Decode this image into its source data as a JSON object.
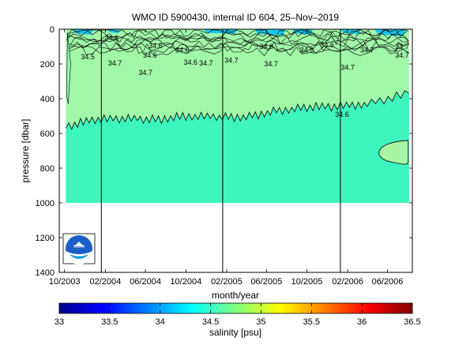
{
  "chart_data": {
    "type": "heatmap",
    "title": "WMO ID 5900430, internal ID 604, 25–Nov–2019",
    "xlabel": "month/year",
    "ylabel": "pressure [dbar]",
    "xlim": [
      "2003-09-15",
      "2006-08-15"
    ],
    "ylim": [
      1400,
      0
    ],
    "x_ticks": [
      "10/2003",
      "02/2004",
      "06/2004",
      "10/2004",
      "02/2005",
      "06/2005",
      "10/2005",
      "02/2006",
      "06/2006"
    ],
    "y_ticks": [
      0,
      200,
      400,
      600,
      800,
      1000,
      1200,
      1400
    ],
    "grid": false,
    "profile_range": [
      "2003-10-05",
      "2006-08-05"
    ],
    "profile_max_pressure": 1000,
    "vertical_lines": [
      "2004-01-20",
      "2005-01-20",
      "2006-01-10"
    ],
    "contour_34_6_depths": [
      [
        "2003-10-05",
        560
      ],
      [
        "2004-01-01",
        520
      ],
      [
        "2004-04-01",
        515
      ],
      [
        "2004-07-01",
        520
      ],
      [
        "2004-10-01",
        500
      ],
      [
        "2005-01-01",
        505
      ],
      [
        "2005-04-01",
        505
      ],
      [
        "2005-07-01",
        470
      ],
      [
        "2005-10-01",
        450
      ],
      [
        "2006-01-01",
        445
      ],
      [
        "2006-04-01",
        430
      ],
      [
        "2006-08-05",
        370
      ]
    ],
    "contour_labels": [
      {
        "text": "34.6",
        "date": "2004-02-20",
        "pressure": 50
      },
      {
        "text": "34.5",
        "date": "2003-12-10",
        "pressure": 160
      },
      {
        "text": "34.7",
        "date": "2004-03-01",
        "pressure": 195
      },
      {
        "text": "34.6",
        "date": "2004-07-01",
        "pressure": 95
      },
      {
        "text": "34.6",
        "date": "2004-06-15",
        "pressure": 150
      },
      {
        "text": "34.6",
        "date": "2004-09-20",
        "pressure": 120
      },
      {
        "text": "34.7",
        "date": "2004-06-01",
        "pressure": 250
      },
      {
        "text": "34.6",
        "date": "2004-10-15",
        "pressure": 190
      },
      {
        "text": "34.7",
        "date": "2004-12-01",
        "pressure": 195
      },
      {
        "text": "34.7",
        "date": "2005-02-15",
        "pressure": 180
      },
      {
        "text": "34.6",
        "date": "2005-06-01",
        "pressure": 100
      },
      {
        "text": "34.7",
        "date": "2005-06-15",
        "pressure": 200
      },
      {
        "text": "34.6",
        "date": "2005-10-01",
        "pressure": 120
      },
      {
        "text": "34.6",
        "date": "2005-12-01",
        "pressure": 90
      },
      {
        "text": "34.7",
        "date": "2006-02-01",
        "pressure": 220
      },
      {
        "text": "34.6",
        "date": "2006-01-15",
        "pressure": 490
      },
      {
        "text": "34.7",
        "date": "2006-04-01",
        "pressure": 120
      },
      {
        "text": "34.7",
        "date": "2006-07-15",
        "pressure": 100
      },
      {
        "text": "34.7",
        "date": "2006-07-15",
        "pressure": 150
      }
    ],
    "colorbar": {
      "label": "salinity [psu]",
      "range": [
        33,
        36.5
      ],
      "ticks": [
        "33",
        "33.5",
        "34",
        "34.5",
        "35",
        "35.5",
        "36",
        "36.5"
      ],
      "colormap": "jet"
    },
    "field_colors": {
      "upper": "#a0f8a8",
      "lower": "#3ff5be",
      "surface_fresh": "#18c8ee",
      "eddy": "#a6f4a4"
    }
  },
  "logo": {
    "text": "NOAA"
  }
}
